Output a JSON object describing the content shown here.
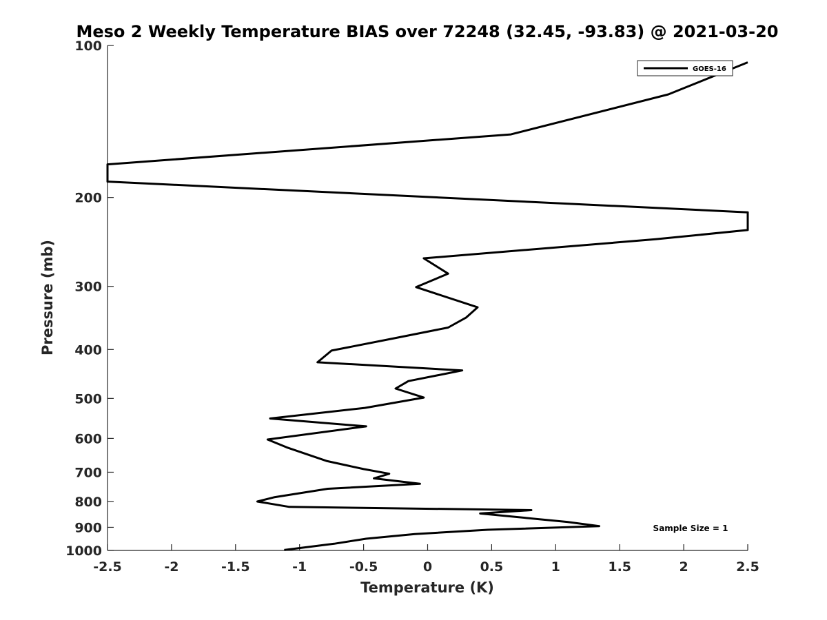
{
  "chart_data": {
    "type": "line",
    "title": "Meso 2 Weekly Temperature BIAS over 72248 (32.45, -93.83) @ 2021-03-20",
    "xlabel": "Temperature (K)",
    "ylabel": "Pressure (mb)",
    "xlim": [
      -2.5,
      2.5
    ],
    "ylim": [
      100,
      1000
    ],
    "y_scale": "log",
    "y_reversed": true,
    "grid": false,
    "x_ticks": [
      -2.5,
      -2,
      -1.5,
      -1,
      -0.5,
      0,
      0.5,
      1,
      1.5,
      2,
      2.5
    ],
    "x_tick_labels": [
      "-2.5",
      "-2",
      "-1.5",
      "-1",
      "-0.5",
      "0",
      "0.5",
      "1",
      "1.5",
      "2",
      "2.5"
    ],
    "y_ticks": [
      100,
      200,
      300,
      400,
      500,
      600,
      700,
      800,
      900,
      1000
    ],
    "y_tick_labels": [
      "100",
      "200",
      "300",
      "400",
      "500",
      "600",
      "700",
      "800",
      "900",
      "1000"
    ],
    "legend_position": "top-right",
    "line_color": "#000000",
    "series": [
      {
        "name": "GOES-16",
        "points": [
          {
            "x": 2.5,
            "y": 108
          },
          {
            "x": 1.88,
            "y": 125
          },
          {
            "x": 0.65,
            "y": 150
          },
          {
            "x": -2.5,
            "y": 172
          },
          {
            "x": -2.5,
            "y": 186
          },
          {
            "x": 2.5,
            "y": 214
          },
          {
            "x": 2.5,
            "y": 232
          },
          {
            "x": 1.78,
            "y": 242
          },
          {
            "x": -0.03,
            "y": 264
          },
          {
            "x": 0.16,
            "y": 283
          },
          {
            "x": -0.09,
            "y": 301
          },
          {
            "x": 0.39,
            "y": 330
          },
          {
            "x": 0.3,
            "y": 346
          },
          {
            "x": 0.16,
            "y": 362
          },
          {
            "x": -0.26,
            "y": 380
          },
          {
            "x": -0.75,
            "y": 402
          },
          {
            "x": -0.86,
            "y": 424
          },
          {
            "x": 0.27,
            "y": 440
          },
          {
            "x": -0.15,
            "y": 462
          },
          {
            "x": -0.25,
            "y": 478
          },
          {
            "x": -0.03,
            "y": 498
          },
          {
            "x": -0.49,
            "y": 522
          },
          {
            "x": -1.23,
            "y": 548
          },
          {
            "x": -0.48,
            "y": 568
          },
          {
            "x": -1.25,
            "y": 603
          },
          {
            "x": -1.1,
            "y": 625
          },
          {
            "x": -0.79,
            "y": 665
          },
          {
            "x": -0.5,
            "y": 690
          },
          {
            "x": -0.3,
            "y": 705
          },
          {
            "x": -0.42,
            "y": 720
          },
          {
            "x": -0.06,
            "y": 738
          },
          {
            "x": -0.78,
            "y": 755
          },
          {
            "x": -1.2,
            "y": 785
          },
          {
            "x": -1.33,
            "y": 800
          },
          {
            "x": -1.08,
            "y": 820
          },
          {
            "x": 0.81,
            "y": 832
          },
          {
            "x": 0.41,
            "y": 845
          },
          {
            "x": 1.09,
            "y": 878
          },
          {
            "x": 1.34,
            "y": 895
          },
          {
            "x": 0.47,
            "y": 910
          },
          {
            "x": -0.1,
            "y": 928
          },
          {
            "x": -0.48,
            "y": 948
          },
          {
            "x": -0.73,
            "y": 970
          },
          {
            "x": -1.12,
            "y": 998
          }
        ]
      }
    ],
    "legend": {
      "entries": [
        "GOES-16"
      ]
    },
    "annotations": [
      "Sample Size = 1"
    ]
  }
}
